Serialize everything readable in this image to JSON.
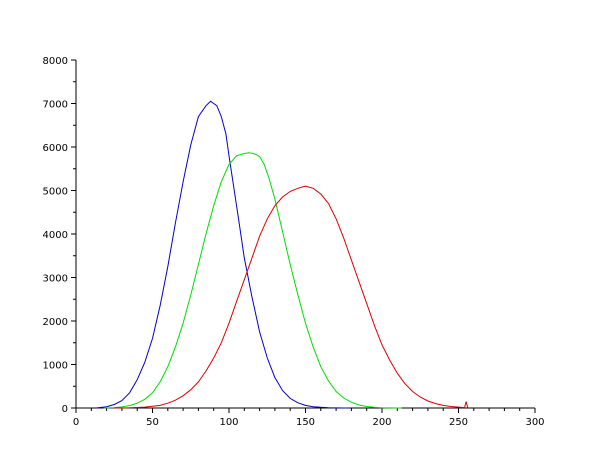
{
  "chart_data": {
    "type": "line",
    "title": "",
    "xlabel": "",
    "ylabel": "",
    "xlim": [
      0,
      300
    ],
    "ylim": [
      0,
      8000
    ],
    "x_ticks": [
      0,
      50,
      100,
      150,
      200,
      250,
      300
    ],
    "y_ticks": [
      0,
      1000,
      2000,
      3000,
      4000,
      5000,
      6000,
      7000,
      8000
    ],
    "x_tick_labels": [
      "0",
      "50",
      "100",
      "150",
      "200",
      "250",
      "300"
    ],
    "y_tick_labels": [
      "0",
      "1000",
      "2000",
      "3000",
      "4000",
      "5000",
      "6000",
      "7000",
      "8000"
    ],
    "grid": false,
    "legend": "none",
    "series": [
      {
        "color": "#0000cc",
        "x": [
          13,
          20,
          25,
          30,
          35,
          40,
          45,
          50,
          55,
          60,
          65,
          70,
          75,
          80,
          85,
          88,
          90,
          92,
          95,
          98,
          100,
          103,
          106,
          110,
          115,
          120,
          125,
          130,
          135,
          140,
          145,
          150,
          155,
          160,
          165,
          170,
          175,
          178
        ],
        "y": [
          0,
          30,
          80,
          170,
          350,
          650,
          1050,
          1600,
          2350,
          3250,
          4250,
          5200,
          6050,
          6700,
          6950,
          7050,
          7000,
          6950,
          6700,
          6300,
          5800,
          5100,
          4400,
          3450,
          2550,
          1750,
          1150,
          700,
          400,
          220,
          120,
          60,
          30,
          15,
          8,
          3,
          0,
          0
        ]
      },
      {
        "color": "#00dd00",
        "x": [
          18,
          25,
          30,
          35,
          40,
          45,
          50,
          55,
          60,
          65,
          70,
          75,
          80,
          85,
          90,
          95,
          100,
          105,
          110,
          113,
          116,
          118,
          120,
          123,
          126,
          130,
          135,
          140,
          145,
          150,
          155,
          160,
          165,
          170,
          175,
          180,
          185,
          190,
          195,
          200,
          205,
          210,
          213
        ],
        "y": [
          0,
          10,
          25,
          55,
          110,
          200,
          350,
          600,
          950,
          1400,
          1950,
          2600,
          3300,
          4000,
          4650,
          5200,
          5600,
          5800,
          5850,
          5870,
          5850,
          5820,
          5780,
          5600,
          5300,
          4800,
          4050,
          3300,
          2600,
          1950,
          1400,
          950,
          620,
          380,
          230,
          130,
          70,
          35,
          15,
          7,
          3,
          1,
          0
        ]
      },
      {
        "color": "#dd0000",
        "x": [
          25,
          35,
          45,
          55,
          60,
          65,
          70,
          75,
          80,
          85,
          90,
          95,
          100,
          105,
          110,
          115,
          120,
          125,
          130,
          135,
          140,
          145,
          148,
          150,
          152,
          155,
          160,
          165,
          170,
          175,
          180,
          185,
          190,
          195,
          200,
          205,
          210,
          215,
          220,
          225,
          230,
          235,
          240,
          245,
          250,
          254,
          255,
          256
        ],
        "y": [
          0,
          5,
          20,
          60,
          110,
          180,
          280,
          420,
          600,
          850,
          1150,
          1500,
          1950,
          2450,
          2950,
          3450,
          3950,
          4350,
          4650,
          4850,
          4980,
          5050,
          5080,
          5100,
          5080,
          5050,
          4920,
          4700,
          4350,
          3900,
          3400,
          2900,
          2400,
          1900,
          1450,
          1100,
          800,
          560,
          380,
          250,
          160,
          100,
          60,
          35,
          20,
          10,
          150,
          10
        ]
      }
    ]
  }
}
